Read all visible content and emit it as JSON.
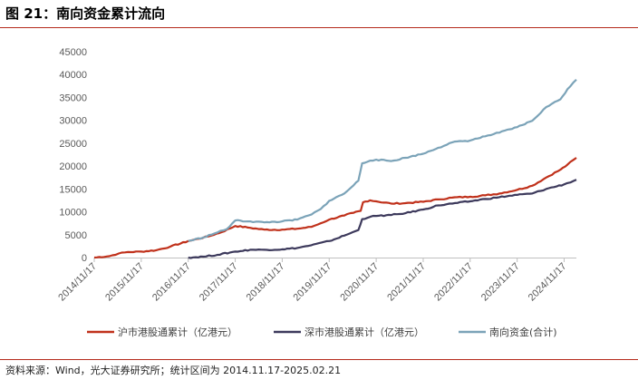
{
  "header": {
    "title": "图 21：南向资金累计流向"
  },
  "footer": {
    "source": "资料来源：Wind，光大证券研究所；统计区间为 2014.11.17-2025.02.21"
  },
  "chart_data": {
    "type": "line",
    "ylim": [
      0,
      45000
    ],
    "y_ticks": [
      0,
      5000,
      10000,
      15000,
      20000,
      25000,
      30000,
      35000,
      40000,
      45000
    ],
    "x_range": [
      2014.88,
      2025.14
    ],
    "x_ticks": [
      {
        "label": "2014/11/17",
        "x": 2014.88
      },
      {
        "label": "2015/11/17",
        "x": 2015.88
      },
      {
        "label": "2016/11/17",
        "x": 2016.88
      },
      {
        "label": "2017/11/17",
        "x": 2017.88
      },
      {
        "label": "2018/11/17",
        "x": 2018.88
      },
      {
        "label": "2019/11/17",
        "x": 2019.88
      },
      {
        "label": "2020/11/17",
        "x": 2020.88
      },
      {
        "label": "2021/11/17",
        "x": 2021.88
      },
      {
        "label": "2022/11/17",
        "x": 2022.88
      },
      {
        "label": "2023/11/17",
        "x": 2023.88
      },
      {
        "label": "2024/11/17",
        "x": 2024.88
      }
    ],
    "grid": false,
    "legend_position": "bottom",
    "series": [
      {
        "name": "沪市港股通累计（亿港元）",
        "color": "#c0311b",
        "points": [
          [
            2014.88,
            0
          ],
          [
            2015.2,
            300
          ],
          [
            2015.4,
            900
          ],
          [
            2015.6,
            1200
          ],
          [
            2015.88,
            1300
          ],
          [
            2016.2,
            1600
          ],
          [
            2016.5,
            2400
          ],
          [
            2016.88,
            3600
          ],
          [
            2017.3,
            4600
          ],
          [
            2017.6,
            5600
          ],
          [
            2017.88,
            6900
          ],
          [
            2018.2,
            6500
          ],
          [
            2018.5,
            6100
          ],
          [
            2018.88,
            6100
          ],
          [
            2019.2,
            6300
          ],
          [
            2019.5,
            6700
          ],
          [
            2019.7,
            7500
          ],
          [
            2019.88,
            8300
          ],
          [
            2020.2,
            9200
          ],
          [
            2020.4,
            9800
          ],
          [
            2020.55,
            10200
          ],
          [
            2020.6,
            12100
          ],
          [
            2020.75,
            12500
          ],
          [
            2020.88,
            12300
          ],
          [
            2021.2,
            11800
          ],
          [
            2021.5,
            11900
          ],
          [
            2021.88,
            12200
          ],
          [
            2022.2,
            12700
          ],
          [
            2022.5,
            13100
          ],
          [
            2022.88,
            13300
          ],
          [
            2023.2,
            13600
          ],
          [
            2023.5,
            14000
          ],
          [
            2023.88,
            14800
          ],
          [
            2024.2,
            15700
          ],
          [
            2024.5,
            17500
          ],
          [
            2024.8,
            19200
          ],
          [
            2024.95,
            20300
          ],
          [
            2025.14,
            21800
          ]
        ]
      },
      {
        "name": "深市港股通累计（亿港元）",
        "color": "#3d3a5c",
        "points": [
          [
            2016.88,
            0
          ],
          [
            2017.2,
            200
          ],
          [
            2017.5,
            600
          ],
          [
            2017.88,
            1300
          ],
          [
            2018.2,
            1700
          ],
          [
            2018.5,
            1700
          ],
          [
            2018.88,
            1800
          ],
          [
            2019.2,
            2100
          ],
          [
            2019.5,
            2700
          ],
          [
            2019.88,
            3600
          ],
          [
            2020.2,
            4800
          ],
          [
            2020.5,
            6000
          ],
          [
            2020.58,
            8400
          ],
          [
            2020.75,
            8900
          ],
          [
            2020.88,
            9100
          ],
          [
            2021.2,
            9300
          ],
          [
            2021.5,
            9700
          ],
          [
            2021.88,
            10500
          ],
          [
            2022.2,
            11400
          ],
          [
            2022.5,
            11800
          ],
          [
            2022.88,
            12300
          ],
          [
            2023.2,
            12800
          ],
          [
            2023.5,
            13200
          ],
          [
            2023.88,
            13700
          ],
          [
            2024.2,
            14000
          ],
          [
            2024.5,
            15000
          ],
          [
            2024.88,
            16000
          ],
          [
            2025.14,
            17000
          ]
        ]
      },
      {
        "name": "南向资金(合计)",
        "color": "#7ba3b8",
        "points": [
          [
            2016.88,
            3600
          ],
          [
            2017.2,
            4400
          ],
          [
            2017.5,
            5500
          ],
          [
            2017.7,
            6200
          ],
          [
            2017.88,
            8100
          ],
          [
            2018.2,
            7900
          ],
          [
            2018.5,
            7700
          ],
          [
            2018.88,
            7900
          ],
          [
            2019.2,
            8300
          ],
          [
            2019.5,
            9400
          ],
          [
            2019.7,
            10600
          ],
          [
            2019.88,
            12400
          ],
          [
            2020.2,
            14000
          ],
          [
            2020.4,
            15800
          ],
          [
            2020.5,
            16800
          ],
          [
            2020.58,
            20600
          ],
          [
            2020.75,
            21200
          ],
          [
            2020.88,
            21400
          ],
          [
            2021.2,
            21100
          ],
          [
            2021.5,
            21800
          ],
          [
            2021.88,
            22700
          ],
          [
            2022.2,
            24000
          ],
          [
            2022.5,
            25200
          ],
          [
            2022.88,
            25600
          ],
          [
            2023.2,
            26500
          ],
          [
            2023.5,
            27300
          ],
          [
            2023.88,
            28500
          ],
          [
            2024.2,
            29900
          ],
          [
            2024.5,
            32900
          ],
          [
            2024.8,
            34600
          ],
          [
            2024.95,
            36800
          ],
          [
            2025.14,
            38900
          ]
        ]
      }
    ]
  }
}
